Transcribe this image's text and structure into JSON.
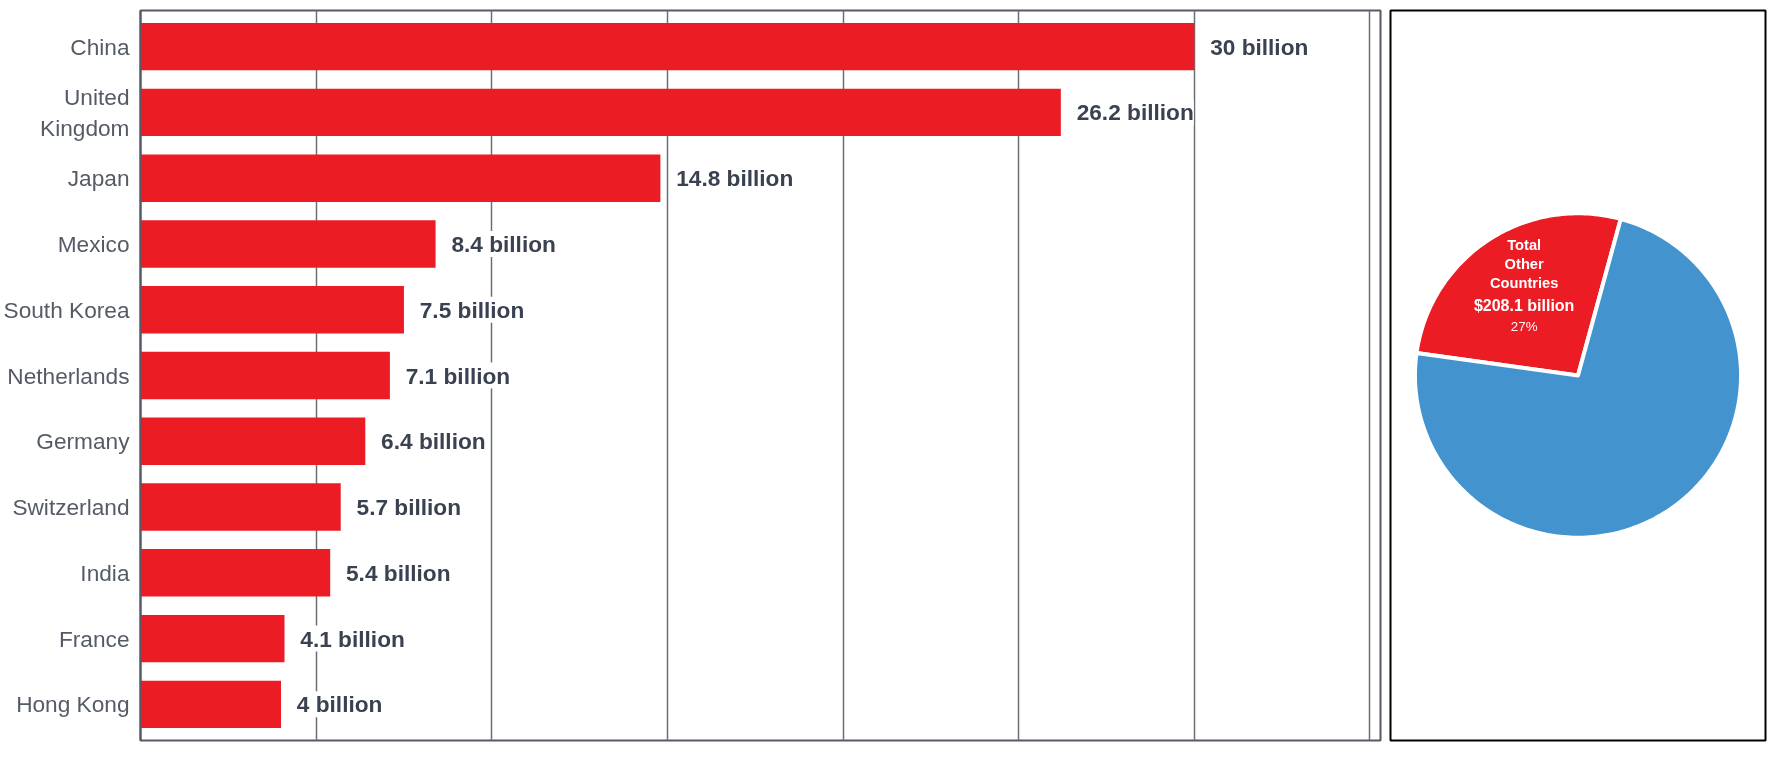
{
  "chart_data": [
    {
      "type": "bar",
      "orientation": "horizontal",
      "categories": [
        "China",
        "United Kingdom",
        "Japan",
        "Mexico",
        "South Korea",
        "Netherlands",
        "Germany",
        "Switzerland",
        "India",
        "France",
        "Hong Kong"
      ],
      "values": [
        30,
        26.2,
        14.8,
        8.4,
        7.5,
        7.1,
        6.4,
        5.7,
        5.4,
        4.1,
        4
      ],
      "value_labels": [
        "30 billion",
        "26.2 billion",
        "14.8 billion",
        "8.4 billion",
        "7.5 billion",
        "7.1 billion",
        "6.4 billion",
        "5.7 billion",
        "5.4 billion",
        "4.1 billion",
        "4 billion"
      ],
      "color": "#ec1c24",
      "xlim": [
        0,
        35.3
      ],
      "xticks": [
        {
          "value": 0,
          "label": null
        },
        {
          "value": 5,
          "label": null
        },
        {
          "value": 10,
          "label": null
        },
        {
          "value": 15,
          "label": null
        },
        {
          "value": 20,
          "label": null
        },
        {
          "value": 25,
          "label": null
        },
        {
          "value": 30,
          "label": null
        },
        {
          "value": 35,
          "label": null
        }
      ],
      "grid": "x",
      "tick_labels": "y"
    },
    {
      "type": "pie",
      "categories": [
        "Total Other Countries",
        null
      ],
      "values": [
        27,
        73
      ],
      "colors": [
        "#ec1c24",
        "#4393cf"
      ],
      "value_labels": [
        "27%",
        null
      ],
      "annotations": [
        "$208.1 billion"
      ]
    }
  ]
}
